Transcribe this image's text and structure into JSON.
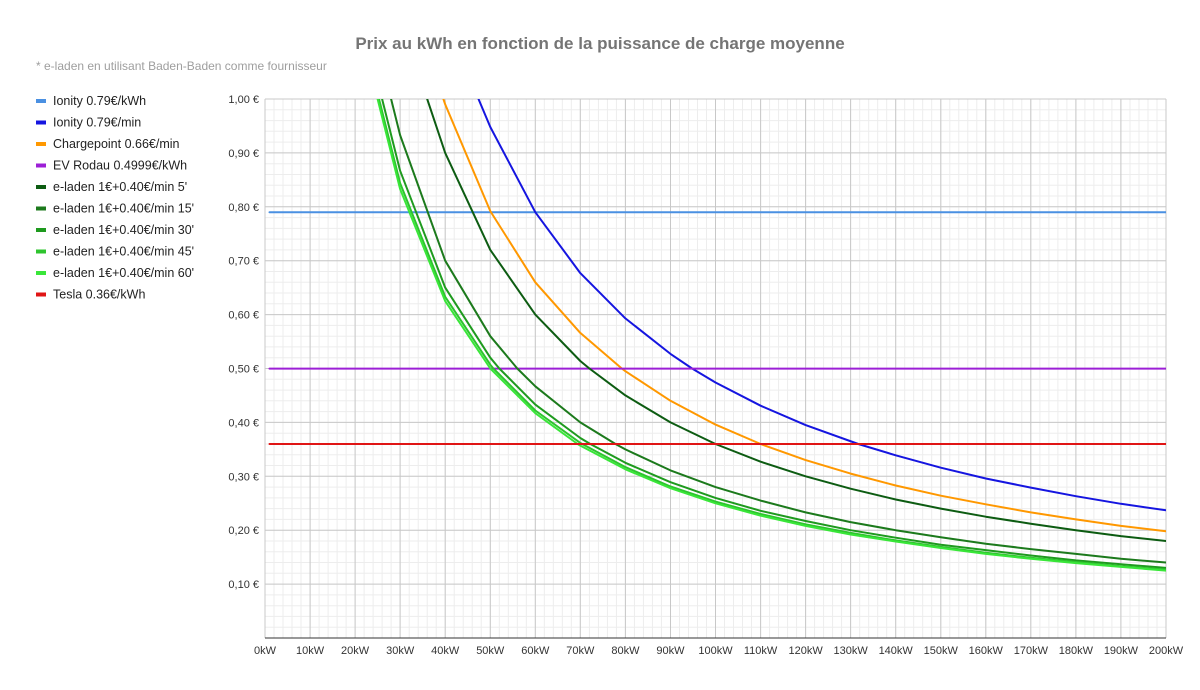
{
  "chart_data": {
    "type": "line",
    "title": "Prix au kWh en fonction de la puissance de charge moyenne",
    "subtitle": "* e-laden en utilisant Baden-Baden comme fournisseur",
    "xlabel": "",
    "ylabel": "",
    "xlim": [
      0,
      200
    ],
    "ylim": [
      0,
      1.0
    ],
    "x_ticks": [
      0,
      10,
      20,
      30,
      40,
      50,
      60,
      70,
      80,
      90,
      100,
      110,
      120,
      130,
      140,
      150,
      160,
      170,
      180,
      190,
      200
    ],
    "x_tick_labels": [
      "0kW",
      "10kW",
      "20kW",
      "30kW",
      "40kW",
      "50kW",
      "60kW",
      "70kW",
      "80kW",
      "90kW",
      "100kW",
      "110kW",
      "120kW",
      "130kW",
      "140kW",
      "150kW",
      "160kW",
      "170kW",
      "180kW",
      "190kW",
      "200kW"
    ],
    "y_ticks": [
      0.1,
      0.2,
      0.3,
      0.4,
      0.5,
      0.6,
      0.7,
      0.8,
      0.9,
      1.0
    ],
    "y_tick_labels": [
      "0,10 €",
      "0,20 €",
      "0,30 €",
      "0,40 €",
      "0,50 €",
      "0,60 €",
      "0,70 €",
      "0,80 €",
      "0,90 €",
      "1,00 €"
    ],
    "grid": true,
    "legend_position": "left",
    "series": [
      {
        "name": "Ionity 0.79€/kWh",
        "color": "#4a90e2",
        "x": [
          1,
          200
        ],
        "y": [
          0.79,
          0.79
        ]
      },
      {
        "name": "Ionity 0.79€/min",
        "color": "#1515e0",
        "x": [
          47.4,
          50,
          60,
          70,
          80,
          90,
          94.8,
          100,
          110,
          120,
          131.7,
          140,
          150,
          160,
          170,
          180,
          190,
          200
        ],
        "y": [
          1.0,
          0.948,
          0.79,
          0.677,
          0.593,
          0.527,
          0.5,
          0.474,
          0.431,
          0.395,
          0.36,
          0.339,
          0.316,
          0.296,
          0.279,
          0.263,
          0.249,
          0.237
        ]
      },
      {
        "name": "Chargepoint 0.66€/min",
        "color": "#ff9800",
        "x": [
          39.6,
          40,
          50,
          60,
          70,
          79.2,
          80,
          90,
          100,
          110,
          120,
          130,
          140,
          150,
          160,
          170,
          180,
          190,
          200
        ],
        "y": [
          1.0,
          0.99,
          0.792,
          0.66,
          0.566,
          0.5,
          0.495,
          0.44,
          0.396,
          0.36,
          0.33,
          0.305,
          0.283,
          0.264,
          0.248,
          0.233,
          0.22,
          0.208,
          0.198
        ]
      },
      {
        "name": "EV Rodau 0.4999€/kWh",
        "color": "#9c1fd6",
        "x": [
          1,
          200
        ],
        "y": [
          0.4999,
          0.4999
        ]
      },
      {
        "name": "e-laden 1€+0.40€/min 5'",
        "color": "#0d5c12",
        "x": [
          36,
          40,
          50,
          60,
          70,
          72,
          80,
          90,
          100,
          110,
          120,
          130,
          140,
          150,
          160,
          170,
          180,
          190,
          200
        ],
        "y": [
          1.0,
          0.9,
          0.72,
          0.6,
          0.514,
          0.5,
          0.45,
          0.4,
          0.36,
          0.327,
          0.3,
          0.277,
          0.257,
          0.24,
          0.225,
          0.212,
          0.2,
          0.189,
          0.18
        ]
      },
      {
        "name": "e-laden 1€+0.40€/min 15'",
        "color": "#1c7a1c",
        "x": [
          28,
          30,
          40,
          50,
          56,
          60,
          70,
          77.8,
          80,
          90,
          100,
          110,
          120,
          130,
          140,
          150,
          160,
          170,
          180,
          190,
          200
        ],
        "y": [
          1.0,
          0.933,
          0.7,
          0.56,
          0.5,
          0.467,
          0.4,
          0.36,
          0.35,
          0.311,
          0.28,
          0.255,
          0.233,
          0.215,
          0.2,
          0.187,
          0.175,
          0.165,
          0.156,
          0.147,
          0.14
        ]
      },
      {
        "name": "e-laden 1€+0.40€/min 30'",
        "color": "#1e9a1e",
        "x": [
          26,
          30,
          40,
          50,
          52,
          60,
          70,
          72.2,
          80,
          90,
          100,
          110,
          120,
          130,
          140,
          150,
          160,
          170,
          180,
          190,
          200
        ],
        "y": [
          1.0,
          0.867,
          0.65,
          0.52,
          0.5,
          0.433,
          0.371,
          0.36,
          0.325,
          0.289,
          0.26,
          0.236,
          0.217,
          0.2,
          0.186,
          0.173,
          0.163,
          0.153,
          0.144,
          0.137,
          0.13
        ]
      },
      {
        "name": "e-laden 1€+0.40€/min 45'",
        "color": "#2ec42e",
        "x": [
          25.3,
          30,
          40,
          50,
          50.7,
          60,
          70,
          70.4,
          80,
          90,
          100,
          110,
          120,
          130,
          140,
          150,
          160,
          170,
          180,
          190,
          200
        ],
        "y": [
          1.0,
          0.844,
          0.633,
          0.507,
          0.5,
          0.422,
          0.362,
          0.36,
          0.317,
          0.281,
          0.253,
          0.23,
          0.211,
          0.195,
          0.181,
          0.169,
          0.158,
          0.149,
          0.141,
          0.133,
          0.127
        ]
      },
      {
        "name": "e-laden 1€+0.40€/min 60'",
        "color": "#39e639",
        "x": [
          25,
          30,
          40,
          50,
          60,
          69.4,
          70,
          80,
          90,
          100,
          110,
          120,
          130,
          140,
          150,
          160,
          170,
          180,
          190,
          200
        ],
        "y": [
          1.0,
          0.833,
          0.625,
          0.5,
          0.417,
          0.36,
          0.357,
          0.313,
          0.278,
          0.25,
          0.227,
          0.208,
          0.192,
          0.179,
          0.167,
          0.156,
          0.147,
          0.139,
          0.132,
          0.125
        ]
      },
      {
        "name": "Tesla 0.36€/kWh",
        "color": "#e01515",
        "x": [
          1,
          200
        ],
        "y": [
          0.36,
          0.36
        ]
      }
    ]
  }
}
